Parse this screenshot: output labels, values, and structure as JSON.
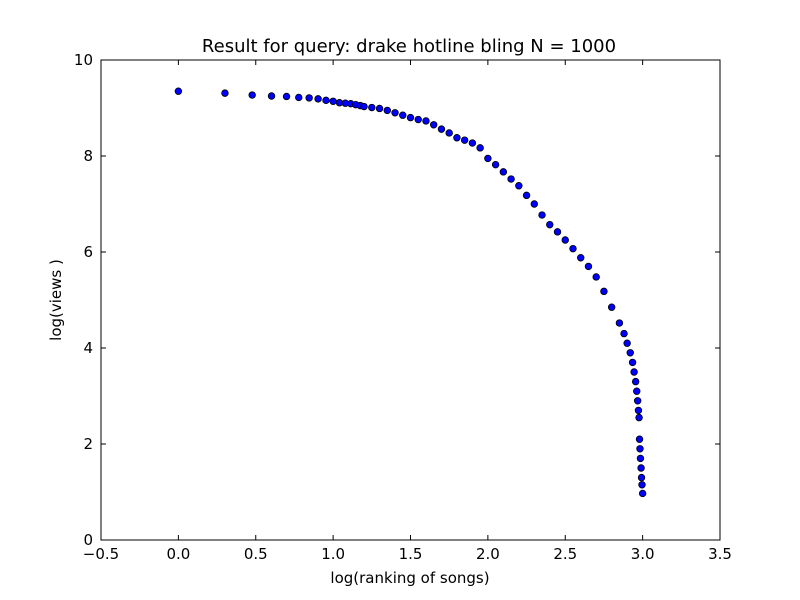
{
  "chart_data": {
    "type": "scatter",
    "title": "Result for query: drake hotline bling N = 1000",
    "xlabel": "log(ranking of songs)",
    "ylabel": "log(views )",
    "xlim": [
      -0.5,
      3.5
    ],
    "ylim": [
      0,
      10
    ],
    "xticks": [
      "−0.5",
      "0.0",
      "0.5",
      "1.0",
      "1.5",
      "2.0",
      "2.5",
      "3.0",
      "3.5"
    ],
    "yticks": [
      "0",
      "2",
      "4",
      "6",
      "8",
      "10"
    ],
    "grid": false,
    "marker_color": "#0000ff",
    "marker_edge_color": "#000000",
    "series": [
      {
        "points": [
          [
            0.0,
            9.35
          ],
          [
            0.301,
            9.31
          ],
          [
            0.477,
            9.27
          ],
          [
            0.602,
            9.25
          ],
          [
            0.699,
            9.24
          ],
          [
            0.778,
            9.22
          ],
          [
            0.845,
            9.21
          ],
          [
            0.903,
            9.19
          ],
          [
            0.954,
            9.16
          ],
          [
            1.0,
            9.14
          ],
          [
            1.041,
            9.11
          ],
          [
            1.079,
            9.1
          ],
          [
            1.114,
            9.09
          ],
          [
            1.146,
            9.07
          ],
          [
            1.176,
            9.05
          ],
          [
            1.2,
            9.03
          ],
          [
            1.25,
            9.01
          ],
          [
            1.3,
            8.99
          ],
          [
            1.35,
            8.95
          ],
          [
            1.4,
            8.9
          ],
          [
            1.45,
            8.85
          ],
          [
            1.5,
            8.8
          ],
          [
            1.55,
            8.76
          ],
          [
            1.6,
            8.73
          ],
          [
            1.65,
            8.65
          ],
          [
            1.7,
            8.56
          ],
          [
            1.75,
            8.48
          ],
          [
            1.8,
            8.38
          ],
          [
            1.85,
            8.33
          ],
          [
            1.9,
            8.27
          ],
          [
            1.95,
            8.17
          ],
          [
            2.0,
            7.95
          ],
          [
            2.05,
            7.82
          ],
          [
            2.1,
            7.67
          ],
          [
            2.15,
            7.52
          ],
          [
            2.2,
            7.38
          ],
          [
            2.25,
            7.18
          ],
          [
            2.3,
            7.0
          ],
          [
            2.35,
            6.77
          ],
          [
            2.4,
            6.57
          ],
          [
            2.45,
            6.42
          ],
          [
            2.5,
            6.25
          ],
          [
            2.55,
            6.07
          ],
          [
            2.6,
            5.88
          ],
          [
            2.65,
            5.7
          ],
          [
            2.7,
            5.48
          ],
          [
            2.75,
            5.18
          ],
          [
            2.8,
            4.85
          ],
          [
            2.85,
            4.52
          ],
          [
            2.88,
            4.3
          ],
          [
            2.9,
            4.1
          ],
          [
            2.92,
            3.9
          ],
          [
            2.935,
            3.7
          ],
          [
            2.945,
            3.5
          ],
          [
            2.955,
            3.3
          ],
          [
            2.962,
            3.1
          ],
          [
            2.968,
            2.9
          ],
          [
            2.973,
            2.7
          ],
          [
            2.977,
            2.55
          ],
          [
            2.98,
            2.1
          ],
          [
            2.983,
            1.9
          ],
          [
            2.986,
            1.7
          ],
          [
            2.99,
            1.5
          ],
          [
            2.993,
            1.3
          ],
          [
            2.996,
            1.15
          ],
          [
            3.0,
            0.97
          ]
        ]
      }
    ]
  }
}
